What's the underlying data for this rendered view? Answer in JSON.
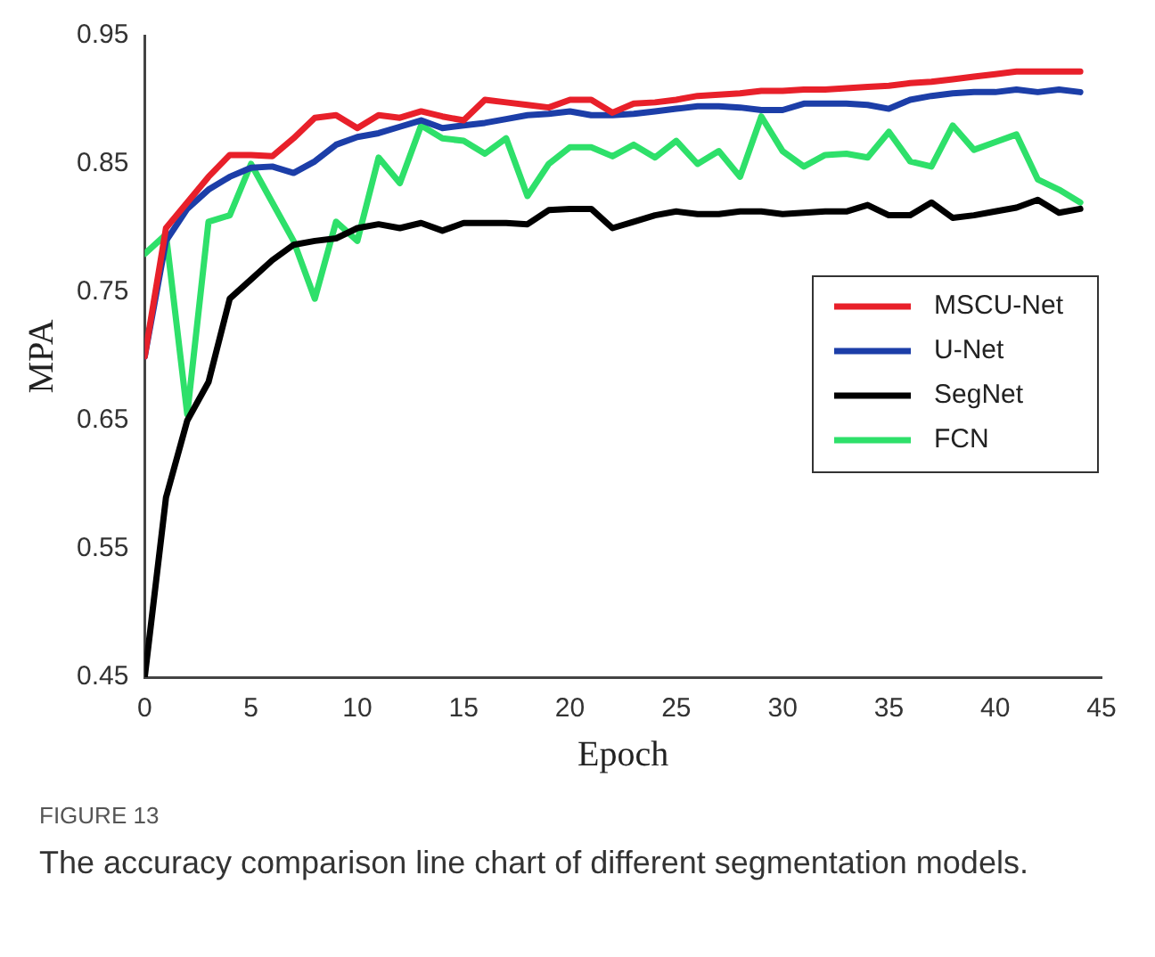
{
  "chart_data": {
    "type": "line",
    "xlabel": "Epoch",
    "ylabel": "MPA",
    "x": [
      0,
      1,
      2,
      3,
      4,
      5,
      6,
      7,
      8,
      9,
      10,
      11,
      12,
      13,
      14,
      15,
      16,
      17,
      18,
      19,
      20,
      21,
      22,
      23,
      24,
      25,
      26,
      27,
      28,
      29,
      30,
      31,
      32,
      33,
      34,
      35,
      36,
      37,
      38,
      39,
      40,
      41,
      42,
      43,
      44
    ],
    "series": [
      {
        "name": "MSCU-Net",
        "color": "#e8202a",
        "values": [
          0.7,
          0.8,
          0.82,
          0.84,
          0.857,
          0.857,
          0.856,
          0.87,
          0.886,
          0.888,
          0.878,
          0.888,
          0.886,
          0.891,
          0.887,
          0.884,
          0.9,
          0.898,
          0.896,
          0.894,
          0.9,
          0.9,
          0.89,
          0.897,
          0.898,
          0.9,
          0.903,
          0.904,
          0.905,
          0.907,
          0.907,
          0.908,
          0.908,
          0.909,
          0.91,
          0.911,
          0.913,
          0.914,
          0.916,
          0.918,
          0.92,
          0.922,
          0.922,
          0.922,
          0.922
        ]
      },
      {
        "name": "U-Net",
        "color": "#1c3ea8",
        "values": [
          0.7,
          0.79,
          0.815,
          0.83,
          0.84,
          0.847,
          0.848,
          0.843,
          0.852,
          0.865,
          0.871,
          0.874,
          0.879,
          0.884,
          0.878,
          0.88,
          0.882,
          0.885,
          0.888,
          0.889,
          0.891,
          0.888,
          0.888,
          0.889,
          0.891,
          0.893,
          0.895,
          0.895,
          0.894,
          0.892,
          0.892,
          0.897,
          0.897,
          0.897,
          0.896,
          0.893,
          0.9,
          0.903,
          0.905,
          0.906,
          0.906,
          0.908,
          0.906,
          0.908,
          0.906
        ]
      },
      {
        "name": "SegNet",
        "color": "#000000",
        "values": [
          0.45,
          0.59,
          0.65,
          0.68,
          0.745,
          0.76,
          0.775,
          0.787,
          0.79,
          0.792,
          0.8,
          0.803,
          0.8,
          0.804,
          0.798,
          0.804,
          0.804,
          0.804,
          0.803,
          0.814,
          0.815,
          0.815,
          0.8,
          0.805,
          0.81,
          0.813,
          0.811,
          0.811,
          0.813,
          0.813,
          0.811,
          0.812,
          0.813,
          0.813,
          0.818,
          0.81,
          0.81,
          0.82,
          0.808,
          0.81,
          0.813,
          0.816,
          0.822,
          0.812,
          0.815
        ]
      },
      {
        "name": "FCN",
        "color": "#2ee06a",
        "values": [
          0.78,
          0.795,
          0.655,
          0.805,
          0.81,
          0.85,
          0.82,
          0.79,
          0.745,
          0.805,
          0.79,
          0.855,
          0.835,
          0.88,
          0.87,
          0.868,
          0.858,
          0.87,
          0.825,
          0.85,
          0.863,
          0.863,
          0.856,
          0.865,
          0.855,
          0.868,
          0.85,
          0.86,
          0.84,
          0.887,
          0.86,
          0.848,
          0.857,
          0.858,
          0.855,
          0.875,
          0.852,
          0.848,
          0.88,
          0.861,
          0.867,
          0.873,
          0.838,
          0.83,
          0.82
        ]
      }
    ],
    "xlim": [
      0,
      45
    ],
    "xticks": [
      0,
      5,
      10,
      15,
      20,
      25,
      30,
      35,
      40,
      45
    ],
    "ylim": [
      0.45,
      0.95
    ],
    "yticks": [
      0.45,
      0.55,
      0.65,
      0.75,
      0.85,
      0.95
    ],
    "grid": false,
    "legend": "right",
    "marker": "none",
    "line_style": "solid",
    "annotations": [
      "FIGURE 13",
      "The accuracy comparison line chart of different segmentation models."
    ]
  }
}
